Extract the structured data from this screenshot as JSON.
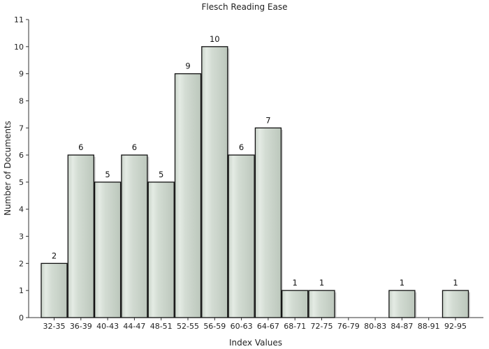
{
  "chart_data": {
    "type": "bar",
    "title": "Flesch Reading Ease",
    "xlabel": "Index Values",
    "ylabel": "Number of Documents",
    "ylim": [
      0,
      11
    ],
    "yticks": [
      0,
      1,
      2,
      3,
      4,
      5,
      6,
      7,
      8,
      9,
      10,
      11
    ],
    "grid": false,
    "legend": "none",
    "categories": [
      "32-35",
      "36-39",
      "40-43",
      "44-47",
      "48-51",
      "52-55",
      "56-59",
      "60-63",
      "64-67",
      "68-71",
      "72-75",
      "76-79",
      "80-83",
      "84-87",
      "88-91",
      "92-95"
    ],
    "values": [
      2,
      6,
      5,
      6,
      5,
      9,
      10,
      6,
      7,
      1,
      1,
      0,
      0,
      1,
      0,
      1
    ],
    "data_labels": [
      "2",
      "6",
      "5",
      "6",
      "5",
      "9",
      "10",
      "6",
      "7",
      "1",
      "1",
      "",
      "",
      "1",
      "",
      "1"
    ],
    "colors": {
      "bar_fill_light": "#e3e9e3",
      "bar_fill_mid": "#ccd6cc",
      "bar_fill_dark": "#b8c4b8",
      "bar_stroke": "#111111",
      "bar_shadow": "#9a9a9a",
      "axis": "#333333"
    }
  }
}
